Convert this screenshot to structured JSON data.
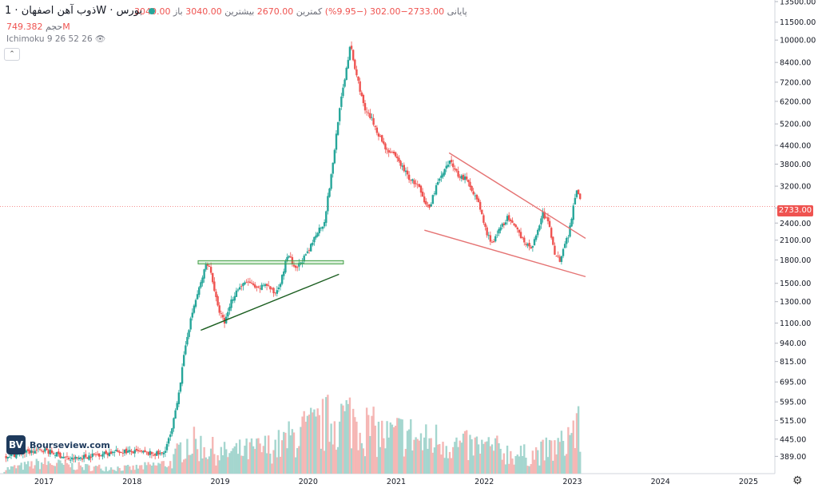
{
  "header": {
    "ohlc_line": [
      {
        "label": "باز",
        "value": "3040.00"
      },
      {
        "label": "بیشترین",
        "value": "3040.00"
      },
      {
        "label": "کمترین",
        "value": "2670.00"
      },
      {
        "label": "پایانی",
        "value": "2733.00−302.00 (−9.95%)"
      }
    ],
    "symbol": "ذوب آهن اصفهان",
    "interval": "1W",
    "exchange": "بورس",
    "volume_label": "حجم",
    "volume_value": "749.382M",
    "indicator": "Ichimoku 9 26 52 26",
    "collapse_icon": "chevron-up-icon",
    "eye_icon": "eye-icon"
  },
  "price_tag": "2733.00",
  "logo": {
    "mark": "BV",
    "text": "Bourseview.com"
  },
  "settings_icon": "gear-icon",
  "colors": {
    "up": "#26a69a",
    "down": "#ef5350",
    "pattern_green": "#1b5e20",
    "pattern_red": "#e57373",
    "tag": "#ef5350"
  },
  "chart_data": {
    "type": "candlestick",
    "y_scale": "log",
    "x_unit": "year",
    "ylim": [
      340,
      13500
    ],
    "xlim": [
      2016.5,
      2025.3
    ],
    "y_ticks": [
      "13500.00",
      "11500.00",
      "10000.00",
      "8400.00",
      "7200.00",
      "6200.00",
      "5200.00",
      "4400.00",
      "3800.00",
      "3200.00",
      "2700.00",
      "2400.00",
      "2100.00",
      "1800.00",
      "1500.00",
      "1300.00",
      "1100.00",
      "940.00",
      "815.00",
      "695.00",
      "595.00",
      "515.00",
      "445.00",
      "389.00"
    ],
    "x_ticks": [
      "2017",
      "2018",
      "2019",
      "2020",
      "2021",
      "2022",
      "2023",
      "2024",
      "2025"
    ],
    "last_close": 2733,
    "price_path": [
      [
        2016.55,
        390
      ],
      [
        2017.0,
        410
      ],
      [
        2017.3,
        380
      ],
      [
        2017.6,
        395
      ],
      [
        2017.9,
        405
      ],
      [
        2018.2,
        398
      ],
      [
        2018.35,
        395
      ],
      [
        2018.45,
        470
      ],
      [
        2018.55,
        700
      ],
      [
        2018.62,
        980
      ],
      [
        2018.7,
        1250
      ],
      [
        2018.78,
        1500
      ],
      [
        2018.85,
        1780
      ],
      [
        2018.9,
        1620
      ],
      [
        2018.97,
        1250
      ],
      [
        2019.05,
        1100
      ],
      [
        2019.12,
        1300
      ],
      [
        2019.2,
        1440
      ],
      [
        2019.32,
        1520
      ],
      [
        2019.42,
        1420
      ],
      [
        2019.52,
        1500
      ],
      [
        2019.62,
        1380
      ],
      [
        2019.7,
        1560
      ],
      [
        2019.77,
        1900
      ],
      [
        2019.85,
        1650
      ],
      [
        2019.92,
        1780
      ],
      [
        2020.0,
        1900
      ],
      [
        2020.1,
        2250
      ],
      [
        2020.18,
        2400
      ],
      [
        2020.27,
        3600
      ],
      [
        2020.34,
        5400
      ],
      [
        2020.42,
        7600
      ],
      [
        2020.48,
        9600
      ],
      [
        2020.53,
        8000
      ],
      [
        2020.58,
        7000
      ],
      [
        2020.64,
        5800
      ],
      [
        2020.72,
        5400
      ],
      [
        2020.8,
        4800
      ],
      [
        2020.88,
        4300
      ],
      [
        2020.96,
        4100
      ],
      [
        2021.05,
        3800
      ],
      [
        2021.15,
        3400
      ],
      [
        2021.25,
        3200
      ],
      [
        2021.32,
        2800
      ],
      [
        2021.38,
        2700
      ],
      [
        2021.45,
        3200
      ],
      [
        2021.55,
        3600
      ],
      [
        2021.62,
        3900
      ],
      [
        2021.7,
        3500
      ],
      [
        2021.78,
        3400
      ],
      [
        2021.87,
        3100
      ],
      [
        2021.95,
        2700
      ],
      [
        2022.03,
        2200
      ],
      [
        2022.1,
        2050
      ],
      [
        2022.18,
        2300
      ],
      [
        2022.26,
        2500
      ],
      [
        2022.35,
        2300
      ],
      [
        2022.43,
        2150
      ],
      [
        2022.52,
        1950
      ],
      [
        2022.6,
        2200
      ],
      [
        2022.66,
        2600
      ],
      [
        2022.73,
        2400
      ],
      [
        2022.8,
        1900
      ],
      [
        2022.86,
        1800
      ],
      [
        2022.9,
        2000
      ],
      [
        2022.96,
        2200
      ],
      [
        2023.0,
        2600
      ],
      [
        2023.04,
        3100
      ],
      [
        2023.08,
        3040
      ],
      [
        2023.1,
        2733
      ]
    ],
    "volume_path": [
      [
        2016.55,
        0.05
      ],
      [
        2017.0,
        0.12
      ],
      [
        2017.5,
        0.07
      ],
      [
        2018.0,
        0.06
      ],
      [
        2018.45,
        0.12
      ],
      [
        2018.6,
        0.35
      ],
      [
        2018.8,
        0.3
      ],
      [
        2019.0,
        0.22
      ],
      [
        2019.3,
        0.25
      ],
      [
        2019.5,
        0.28
      ],
      [
        2019.7,
        0.32
      ],
      [
        2019.9,
        0.45
      ],
      [
        2020.1,
        0.5
      ],
      [
        2020.3,
        0.6
      ],
      [
        2020.5,
        0.62
      ],
      [
        2020.7,
        0.48
      ],
      [
        2020.9,
        0.4
      ],
      [
        2021.1,
        0.45
      ],
      [
        2021.3,
        0.35
      ],
      [
        2021.5,
        0.38
      ],
      [
        2021.7,
        0.3
      ],
      [
        2021.9,
        0.3
      ],
      [
        2022.1,
        0.28
      ],
      [
        2022.3,
        0.22
      ],
      [
        2022.5,
        0.2
      ],
      [
        2022.7,
        0.25
      ],
      [
        2022.9,
        0.32
      ],
      [
        2023.0,
        0.5
      ],
      [
        2023.1,
        0.45
      ]
    ],
    "trendlines": [
      {
        "color": "green",
        "points": [
          [
            2018.78,
            1040
          ],
          [
            2020.35,
            1610
          ]
        ]
      },
      {
        "color": "red",
        "points": [
          [
            2021.32,
            2270
          ],
          [
            2023.15,
            1580
          ]
        ]
      },
      {
        "color": "red",
        "points": [
          [
            2021.6,
            4150
          ],
          [
            2023.15,
            2130
          ]
        ]
      }
    ],
    "resistance_box": {
      "x": [
        2018.75,
        2020.4
      ],
      "y": [
        1745,
        1790
      ]
    }
  }
}
